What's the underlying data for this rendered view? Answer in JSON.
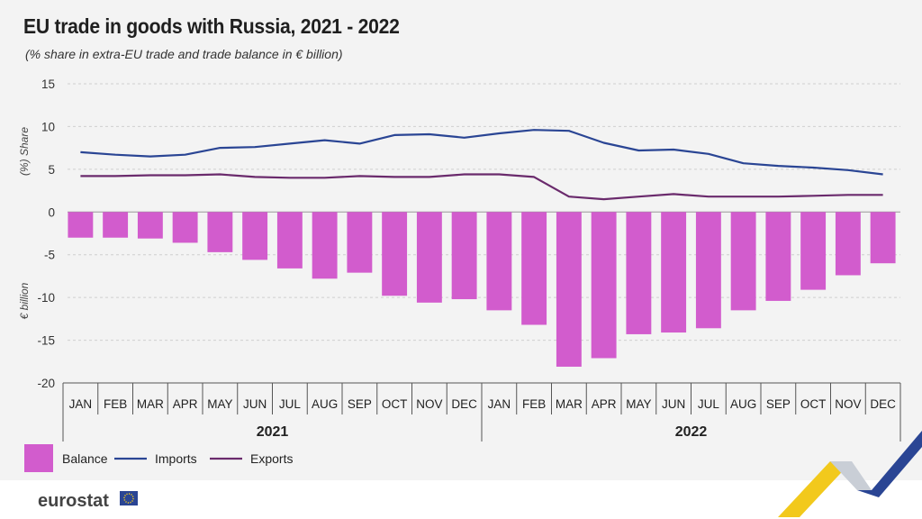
{
  "chart_data": {
    "type": "bar",
    "title": "EU trade in goods with Russia, 2021 - 2022",
    "subtitle": "(% share in extra-EU trade and trade balance in € billion)",
    "categories": [
      "JAN",
      "FEB",
      "MAR",
      "APR",
      "MAY",
      "JUN",
      "JUL",
      "AUG",
      "SEP",
      "OCT",
      "NOV",
      "DEC",
      "JAN",
      "FEB",
      "MAR",
      "APR",
      "MAY",
      "JUN",
      "JUL",
      "AUG",
      "SEP",
      "OCT",
      "NOV",
      "DEC"
    ],
    "years": [
      {
        "label": "2021",
        "start": 0,
        "count": 12
      },
      {
        "label": "2022",
        "start": 12,
        "count": 12
      }
    ],
    "ylim": [
      -20,
      15
    ],
    "yticks": [
      "15",
      "10",
      "5",
      "0",
      "-5",
      "-10",
      "-15",
      "-20"
    ],
    "ylabel_share": "(%) Share",
    "ylabel_balance": "€ billion",
    "grid": true,
    "series": [
      {
        "name": "Balance",
        "kind": "bar",
        "color": "#d25ccd",
        "values": [
          -3.0,
          -3.0,
          -3.1,
          -3.6,
          -4.7,
          -5.6,
          -6.6,
          -7.8,
          -7.1,
          -9.8,
          -10.6,
          -10.2,
          -11.5,
          -13.2,
          -18.1,
          -17.1,
          -14.3,
          -14.1,
          -13.6,
          -11.5,
          -10.4,
          -9.1,
          -7.4,
          -6.0
        ]
      },
      {
        "name": "Imports",
        "kind": "line",
        "color": "#2a4594",
        "values": [
          7.0,
          6.7,
          6.5,
          6.7,
          7.5,
          7.6,
          8.0,
          8.4,
          8.0,
          9.0,
          9.1,
          8.7,
          9.2,
          9.6,
          9.5,
          8.1,
          7.2,
          7.3,
          6.8,
          5.7,
          5.4,
          5.2,
          4.9,
          4.4
        ]
      },
      {
        "name": "Exports",
        "kind": "line",
        "color": "#6a2a6c",
        "values": [
          4.2,
          4.2,
          4.3,
          4.3,
          4.4,
          4.1,
          4.0,
          4.0,
          4.2,
          4.1,
          4.1,
          4.4,
          4.4,
          4.1,
          1.8,
          1.5,
          1.8,
          2.1,
          1.8,
          1.8,
          1.8,
          1.9,
          2.0,
          2.0
        ]
      }
    ],
    "legend_position": "bottom-left"
  },
  "branding": {
    "logo_text": "eurostat",
    "colors": {
      "accent_blue": "#2a4594",
      "accent_yellow": "#f2c91c"
    }
  }
}
